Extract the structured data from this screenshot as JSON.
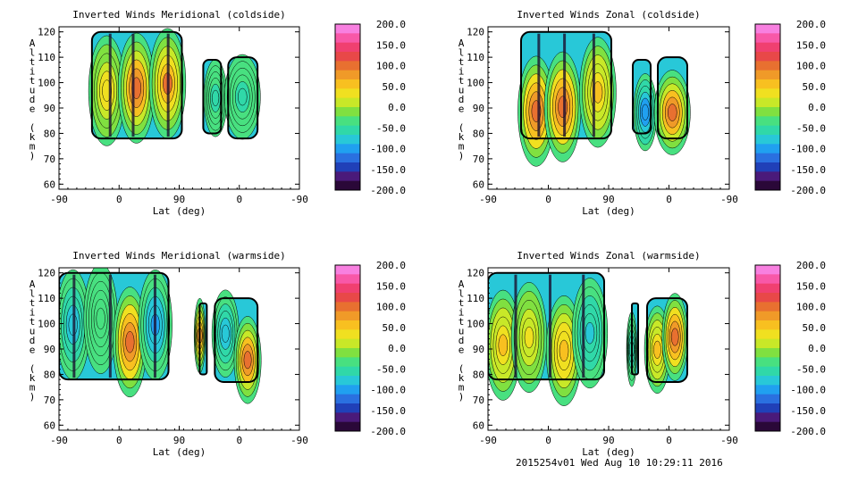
{
  "chart_data": [
    {
      "type": "heatmap",
      "title": "Inverted Winds Meridional (coldside)",
      "xlabel": "Lat (deg)",
      "ylabel": "Altitude (km)",
      "x_ticks": [
        "-90",
        "0",
        "90",
        "0",
        "-90"
      ],
      "y_ticks": [
        60,
        70,
        80,
        90,
        100,
        110,
        120
      ],
      "ylim": [
        58,
        122
      ],
      "data_regions": [
        {
          "x_start": -53,
          "x_end": 48,
          "y_bottom": 78,
          "y_top": 120
        },
        {
          "x_start": 72,
          "x_end": 92,
          "y_bottom": 80,
          "y_top": 109
        },
        {
          "x_start": 100,
          "x_end": 133,
          "y_bottom": 78,
          "y_top": 110
        }
      ],
      "colorbar": {
        "ticks": [
          "200.0",
          "150.0",
          "100.0",
          "50.0",
          "0.0",
          "-50.0",
          "-100.0",
          "-150.0",
          "-200.0"
        ],
        "range": [
          -200,
          200
        ]
      }
    },
    {
      "type": "heatmap",
      "title": "Inverted Winds Zonal (coldside)",
      "xlabel": "Lat (deg)",
      "ylabel": "Altitude (km)",
      "x_ticks": [
        "-90",
        "0",
        "90",
        "0",
        "-90"
      ],
      "y_ticks": [
        60,
        70,
        80,
        90,
        100,
        110,
        120
      ],
      "ylim": [
        58,
        122
      ],
      "data_regions": [
        {
          "x_start": -53,
          "x_end": 48,
          "y_bottom": 78,
          "y_top": 120
        },
        {
          "x_start": 72,
          "x_end": 92,
          "y_bottom": 80,
          "y_top": 109
        },
        {
          "x_start": 100,
          "x_end": 133,
          "y_bottom": 78,
          "y_top": 110
        }
      ],
      "colorbar": {
        "ticks": [
          "200.0",
          "150.0",
          "100.0",
          "50.0",
          "0.0",
          "-50.0",
          "-100.0",
          "-150.0",
          "-200.0"
        ],
        "range": [
          -200,
          200
        ]
      }
    },
    {
      "type": "heatmap",
      "title": "Inverted Winds Meridional (warmside)",
      "xlabel": "Lat (deg)",
      "ylabel": "Altitude (km)",
      "x_ticks": [
        "-90",
        "0",
        "90",
        "0",
        "-90"
      ],
      "y_ticks": [
        60,
        70,
        80,
        90,
        100,
        110,
        120
      ],
      "ylim": [
        58,
        122
      ],
      "data_regions": [
        {
          "x_start": -90,
          "x_end": 33,
          "y_bottom": 78,
          "y_top": 120
        },
        {
          "x_start": 68,
          "x_end": 76,
          "y_bottom": 80,
          "y_top": 108
        },
        {
          "x_start": 85,
          "x_end": 133,
          "y_bottom": 77,
          "y_top": 110
        }
      ],
      "colorbar": {
        "ticks": [
          "200.0",
          "150.0",
          "100.0",
          "50.0",
          "0.0",
          "-50.0",
          "-100.0",
          "-150.0",
          "-200.0"
        ],
        "range": [
          -200,
          200
        ]
      }
    },
    {
      "type": "heatmap",
      "title": "Inverted Winds Zonal (warmside)",
      "xlabel": "Lat (deg)",
      "ylabel": "Altitude (km)",
      "x_ticks": [
        "-90",
        "0",
        "90",
        "0",
        "-90"
      ],
      "y_ticks": [
        60,
        70,
        80,
        90,
        100,
        110,
        120
      ],
      "ylim": [
        58,
        122
      ],
      "data_regions": [
        {
          "x_start": -90,
          "x_end": 40,
          "y_bottom": 78,
          "y_top": 120
        },
        {
          "x_start": 71,
          "x_end": 78,
          "y_bottom": 80,
          "y_top": 108
        },
        {
          "x_start": 88,
          "x_end": 133,
          "y_bottom": 77,
          "y_top": 110
        }
      ],
      "colorbar": {
        "ticks": [
          "200.0",
          "150.0",
          "100.0",
          "50.0",
          "0.0",
          "-50.0",
          "-100.0",
          "-150.0",
          "-200.0"
        ],
        "range": [
          -200,
          200
        ]
      }
    }
  ],
  "colorscale": [
    "#2a0838",
    "#4a1a7a",
    "#2040b8",
    "#2a70e0",
    "#20a0f0",
    "#28c8d8",
    "#30d8a8",
    "#48e080",
    "#80e040",
    "#c8e828",
    "#f0e020",
    "#f8c020",
    "#f09a28",
    "#e87030",
    "#e84848",
    "#f04070",
    "#f858a8",
    "#f880e0"
  ],
  "footer_text": "2015254v01 Wed Aug 10 10:29:11 2016"
}
